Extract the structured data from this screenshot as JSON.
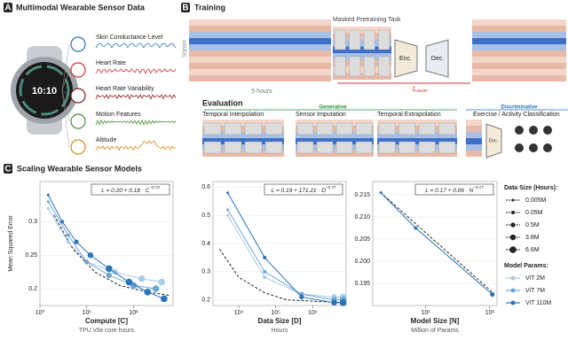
{
  "panel_a": {
    "letter": "A",
    "title": "Multimodal Wearable Sensor Data",
    "watch_time": "10:10",
    "signals": [
      "Skin Conductance Level",
      "Heart Rate",
      "Heart Rate Variability",
      "Motion Features",
      "Altitude"
    ]
  },
  "panel_b": {
    "letter": "B",
    "title": "Training",
    "task": "Masked Pretraining Task",
    "axis_signals": "Signals",
    "duration": "5 hours",
    "enc": "Enc.",
    "dec": "Dec.",
    "loss": "L",
    "loss_sub": "recon",
    "evaluation": "Evaluation",
    "generative": "Generative",
    "discriminative": "Discriminative",
    "tasks": [
      "Temporal Interpolation",
      "Sensor Imputation",
      "Temporal Extrapolation",
      "Exercise / Activity Classification"
    ]
  },
  "panel_c": {
    "letter": "C",
    "title": "Scaling Wearable Sensor Models",
    "ylabel": "Mean Squared Error",
    "data_size_title": "Data Size (Hours):",
    "data_sizes": [
      "0.005M",
      "0.05M",
      "0.5M",
      "3.8M",
      "6.6M"
    ],
    "model_params_title": "Model Params:"
  },
  "chart_data": [
    {
      "type": "line",
      "xlabel": "Compute [C]",
      "xsublabel": "TPU v5e core hours",
      "formula": "L = 0.20 + 0.18 · C",
      "formula_exp": "−0.74",
      "xlog": true,
      "xlim": [
        1,
        700
      ],
      "ylim": [
        0.175,
        0.36
      ],
      "xticks": [
        {
          "value": 1,
          "label": "10⁰"
        },
        {
          "value": 10,
          "label": "10¹"
        },
        {
          "value": 100,
          "label": "10²"
        }
      ],
      "yticks": [
        0.2,
        0.25,
        0.3
      ],
      "series": [
        {
          "name": "ViT 2M",
          "color": "#a9cbe6",
          "x": [
            1.5,
            4,
            10,
            40,
            150,
            400
          ],
          "values": [
            0.32,
            0.27,
            0.24,
            0.225,
            0.215,
            0.21
          ]
        },
        {
          "name": "ViT 7M",
          "color": "#6ba6d6",
          "x": [
            1.5,
            4,
            10,
            30,
            100,
            300
          ],
          "values": [
            0.33,
            0.28,
            0.24,
            0.22,
            0.205,
            0.2
          ]
        },
        {
          "name": "ViT 110M",
          "color": "#2a73b8",
          "x": [
            1.5,
            3,
            6,
            12,
            30,
            80,
            200,
            450
          ],
          "values": [
            0.34,
            0.3,
            0.27,
            0.25,
            0.23,
            0.21,
            0.195,
            0.185
          ]
        }
      ],
      "fit": {
        "x": [
          2,
          5,
          15,
          50,
          200,
          600
        ],
        "y": [
          0.31,
          0.26,
          0.225,
          0.205,
          0.195,
          0.19
        ]
      }
    },
    {
      "type": "line",
      "xlabel": "Data Size [D]",
      "xsublabel": "Hours",
      "formula": "L = 0.19 + 171.21 · D",
      "formula_exp": "−0.77",
      "xlog": true,
      "xlim": [
        2000,
        8000000
      ],
      "ylim": [
        0.18,
        0.62
      ],
      "xticks": [
        {
          "value": 10000,
          "label": "10⁴"
        },
        {
          "value": 100000,
          "label": "10⁵"
        },
        {
          "value": 1000000,
          "label": "10⁶"
        }
      ],
      "yticks": [
        0.2,
        0.3,
        0.4,
        0.5,
        0.6
      ],
      "series": [
        {
          "name": "ViT 2M",
          "color": "#a9cbe6",
          "x": [
            5000,
            50000,
            500000,
            3800000,
            6600000
          ],
          "values": [
            0.5,
            0.28,
            0.22,
            0.21,
            0.21
          ]
        },
        {
          "name": "ViT 7M",
          "color": "#6ba6d6",
          "x": [
            5000,
            50000,
            500000,
            3800000,
            6600000
          ],
          "values": [
            0.52,
            0.3,
            0.22,
            0.2,
            0.2
          ]
        },
        {
          "name": "ViT 110M",
          "color": "#2a73b8",
          "x": [
            5000,
            50000,
            500000,
            3800000,
            6600000
          ],
          "values": [
            0.58,
            0.35,
            0.21,
            0.19,
            0.19
          ]
        }
      ],
      "fit": {
        "x": [
          3000,
          10000,
          50000,
          200000,
          6000000
        ],
        "y": [
          0.38,
          0.28,
          0.225,
          0.2,
          0.19
        ]
      }
    },
    {
      "type": "line",
      "xlabel": "Model Size [N]",
      "xsublabel": "Million of Params",
      "formula": "L = 0.17 + 0.06 · N",
      "formula_exp": "−0.17",
      "xlog": true,
      "xlim": [
        1.5,
        130
      ],
      "ylim": [
        0.19,
        0.218
      ],
      "xticks": [
        {
          "value": 10,
          "label": "10¹"
        },
        {
          "value": 100,
          "label": "10²"
        }
      ],
      "yticks": [
        0.195,
        {
          "value": 0.2,
          "label": "0.200"
        },
        0.205,
        {
          "value": 0.21,
          "label": "0.210"
        },
        0.215
      ],
      "series": [
        {
          "name": "ViT 2M–110M",
          "color": "#2a73b8",
          "x": [
            2,
            7,
            110
          ],
          "values": [
            0.2155,
            0.2075,
            0.1925
          ]
        }
      ],
      "fit": {
        "x": [
          2,
          110
        ],
        "y": [
          0.2155,
          0.193
        ]
      }
    }
  ]
}
